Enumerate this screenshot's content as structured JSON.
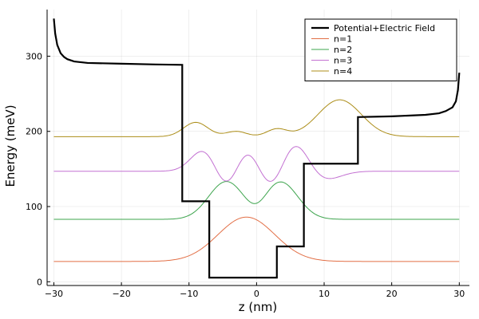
{
  "chart_data": {
    "type": "line",
    "title": "",
    "xlabel": "z (nm)",
    "ylabel": "Energy (meV)",
    "xlim": [
      -31,
      31.5
    ],
    "ylim": [
      -5,
      362
    ],
    "x_ticks": [
      -30,
      -20,
      -10,
      0,
      10,
      20,
      30
    ],
    "x_tick_labels": [
      "−30",
      "−20",
      "−10",
      "0",
      "10",
      "20",
      "30"
    ],
    "y_ticks": [
      0,
      100,
      200,
      300
    ],
    "y_tick_labels": [
      "0",
      "100",
      "200",
      "300"
    ],
    "grid": true,
    "legend_position": "top-right",
    "potential": {
      "name": "Potential+Electric Field",
      "color": "#000000",
      "points": [
        [
          -30,
          350
        ],
        [
          -29.8,
          330
        ],
        [
          -29.5,
          315
        ],
        [
          -29,
          304
        ],
        [
          -28.5,
          299
        ],
        [
          -28,
          296
        ],
        [
          -27,
          293
        ],
        [
          -25,
          291
        ],
        [
          -20,
          290
        ],
        [
          -15,
          289
        ],
        [
          -11,
          288.5
        ],
        [
          -11,
          107
        ],
        [
          -7,
          107
        ],
        [
          -7,
          5.5
        ],
        [
          3,
          5.5
        ],
        [
          3,
          47
        ],
        [
          7,
          47
        ],
        [
          7,
          157
        ],
        [
          15,
          157
        ],
        [
          15,
          219
        ],
        [
          20,
          220
        ],
        [
          25,
          222
        ],
        [
          27,
          224
        ],
        [
          28,
          227
        ],
        [
          29,
          232
        ],
        [
          29.5,
          240
        ],
        [
          29.8,
          255
        ],
        [
          30,
          278
        ]
      ]
    },
    "series": [
      {
        "name": "n=1",
        "color": "#e26f46",
        "offset": 27,
        "components": [
          [
            59,
            -1.5,
            4.2
          ]
        ]
      },
      {
        "name": "n=2",
        "color": "#3da44d",
        "offset": 83,
        "components": [
          [
            50,
            -4.5,
            2.6
          ],
          [
            50,
            3.5,
            2.6
          ],
          [
            -10,
            0,
            1.5
          ]
        ]
      },
      {
        "name": "n=3",
        "color": "#c371d2",
        "offset": 147,
        "components": [
          [
            33,
            -7.5,
            2.0
          ],
          [
            33,
            -1.5,
            1.8
          ],
          [
            45,
            5.5,
            2.2
          ],
          [
            -32,
            -4.5,
            1.9
          ],
          [
            -32,
            2.5,
            1.9
          ],
          [
            -14,
            9.5,
            2.5
          ]
        ]
      },
      {
        "name": "n=4",
        "color": "#ac8d18",
        "offset": 193,
        "components": [
          [
            19,
            -9,
            1.8
          ],
          [
            7,
            -3,
            1.5
          ],
          [
            10,
            3,
            1.5
          ],
          [
            49,
            12.3,
            3.2
          ]
        ]
      }
    ]
  }
}
